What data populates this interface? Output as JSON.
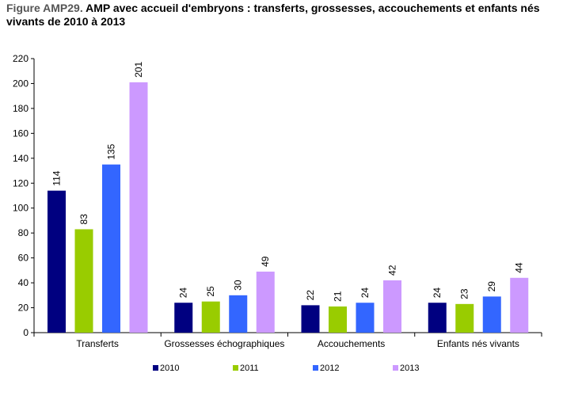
{
  "title": {
    "prefix": "Figure AMP29.",
    "text": "AMP avec accueil d'embryons : transferts, grossesses, accouchements et enfants nés vivants de 2010 à 2013"
  },
  "chart_data": {
    "type": "bar",
    "categories": [
      "Transferts",
      "Grossesses échographiques",
      "Accouchements",
      "Enfants nés vivants"
    ],
    "series": [
      {
        "name": "2010",
        "color": "#000080",
        "values": [
          114,
          24,
          22,
          24
        ]
      },
      {
        "name": "2011",
        "color": "#99CC00",
        "values": [
          83,
          25,
          21,
          23
        ]
      },
      {
        "name": "2012",
        "color": "#3366FF",
        "values": [
          135,
          30,
          24,
          29
        ]
      },
      {
        "name": "2013",
        "color": "#CC99FF",
        "values": [
          201,
          49,
          42,
          44
        ]
      }
    ],
    "ylim": [
      0,
      220
    ],
    "yticks": [
      0,
      20,
      40,
      60,
      80,
      100,
      120,
      140,
      160,
      180,
      200,
      220
    ],
    "grid": false,
    "legend_position": "bottom",
    "data_labels": "vertical above bars"
  }
}
